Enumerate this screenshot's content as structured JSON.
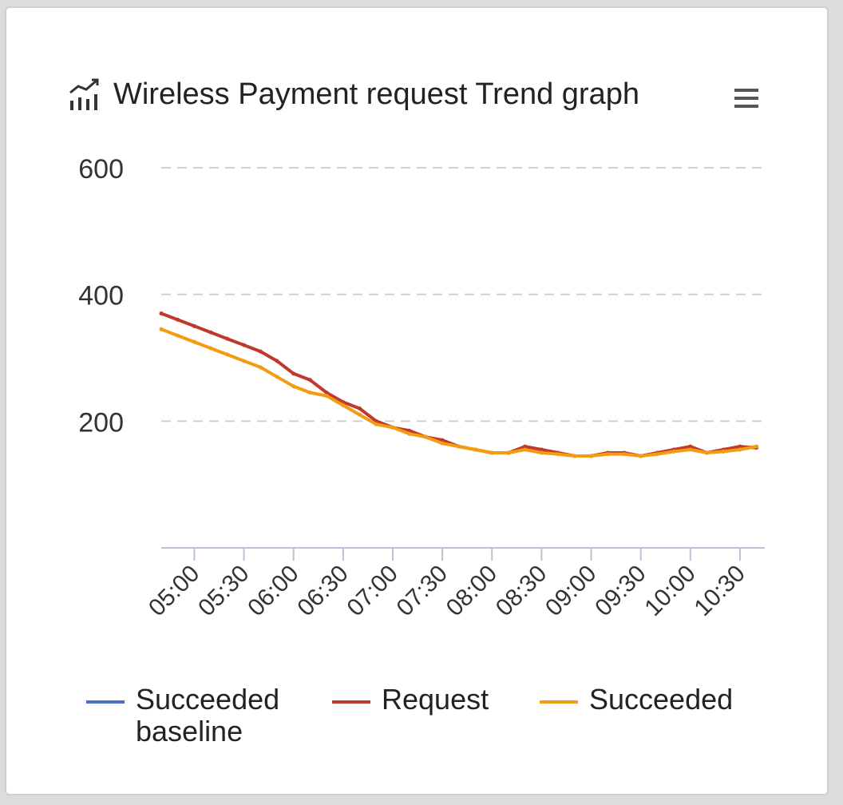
{
  "widget": {
    "title": "Wireless Payment request Trend graph",
    "title_icon": "line-chart-icon",
    "menu_icon": "hamburger-menu-icon"
  },
  "chart_data": {
    "type": "line",
    "title": "Wireless Payment request Trend graph",
    "ylim": [
      0,
      600
    ],
    "yticks": [
      200,
      400,
      600
    ],
    "xlim": [
      "04:40",
      "10:45"
    ],
    "xticks": [
      "05:00",
      "05:30",
      "06:00",
      "06:30",
      "07:00",
      "07:30",
      "08:00",
      "08:30",
      "09:00",
      "09:30",
      "10:00",
      "10:30"
    ],
    "grid": "horizontal-dashed",
    "legend": "bottom",
    "series": [
      {
        "name": "Succeeded baseline",
        "color": "#4472c4",
        "x": [],
        "values": []
      },
      {
        "name": "Request",
        "color": "#c0392b",
        "x": [
          "04:40",
          "04:50",
          "05:00",
          "05:10",
          "05:20",
          "05:30",
          "05:40",
          "05:50",
          "06:00",
          "06:10",
          "06:20",
          "06:30",
          "06:40",
          "06:50",
          "07:00",
          "07:10",
          "07:20",
          "07:30",
          "07:40",
          "07:50",
          "08:00",
          "08:10",
          "08:20",
          "08:30",
          "08:40",
          "08:50",
          "09:00",
          "09:10",
          "09:20",
          "09:30",
          "09:40",
          "09:50",
          "10:00",
          "10:10",
          "10:20",
          "10:30",
          "10:40"
        ],
        "values": [
          370,
          360,
          350,
          340,
          330,
          320,
          310,
          295,
          275,
          265,
          245,
          230,
          220,
          200,
          190,
          185,
          175,
          170,
          160,
          155,
          150,
          150,
          160,
          155,
          150,
          145,
          145,
          150,
          150,
          145,
          150,
          155,
          160,
          150,
          155,
          160,
          158
        ]
      },
      {
        "name": "Succeeded",
        "color": "#f39c12",
        "x": [
          "04:40",
          "04:50",
          "05:00",
          "05:10",
          "05:20",
          "05:30",
          "05:40",
          "05:50",
          "06:00",
          "06:10",
          "06:20",
          "06:30",
          "06:40",
          "06:50",
          "07:00",
          "07:10",
          "07:20",
          "07:30",
          "07:40",
          "07:50",
          "08:00",
          "08:10",
          "08:20",
          "08:30",
          "08:40",
          "08:50",
          "09:00",
          "09:10",
          "09:20",
          "09:30",
          "09:40",
          "09:50",
          "10:00",
          "10:10",
          "10:20",
          "10:30",
          "10:40"
        ],
        "values": [
          345,
          335,
          325,
          315,
          305,
          295,
          285,
          270,
          255,
          245,
          240,
          225,
          210,
          195,
          190,
          180,
          175,
          165,
          160,
          155,
          150,
          150,
          155,
          150,
          148,
          145,
          145,
          148,
          148,
          145,
          148,
          152,
          155,
          150,
          152,
          155,
          160
        ]
      }
    ]
  },
  "legend": {
    "items": [
      {
        "label_line1": "Succeeded",
        "label_line2": "baseline",
        "color": "#4472c4"
      },
      {
        "label_line1": "Request",
        "label_line2": "",
        "color": "#c0392b"
      },
      {
        "label_line1": "Succeeded",
        "label_line2": "",
        "color": "#f39c12"
      }
    ]
  }
}
